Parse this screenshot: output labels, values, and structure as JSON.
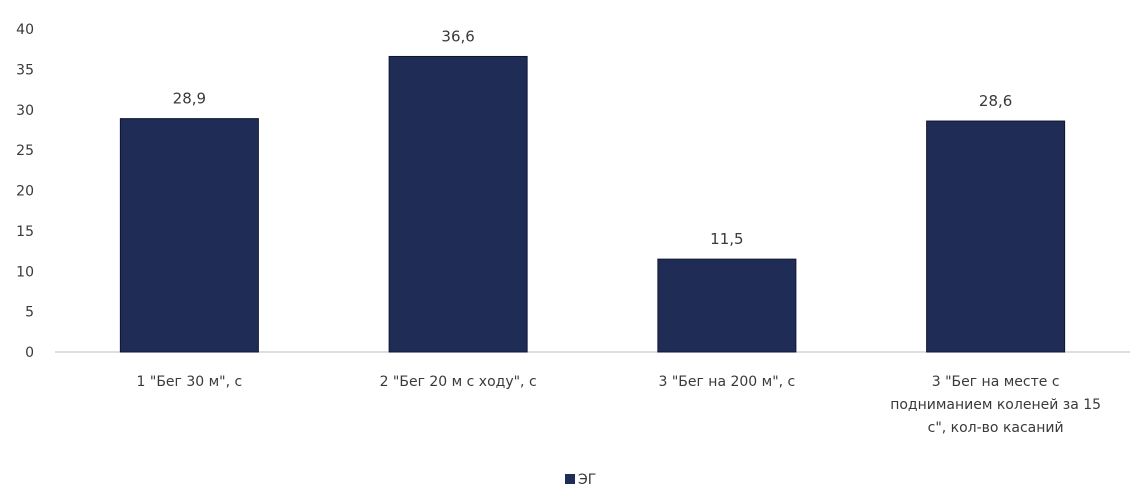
{
  "chart_data": {
    "type": "bar",
    "categories": [
      [
        "1 \"Бег 30 м\", с"
      ],
      [
        "2 \"Бег 20 м с ходу\", с"
      ],
      [
        "3 \"Бег на 200 м\", с"
      ],
      [
        "3 \"Бег на месте с",
        "подниманием коленей за 15",
        "с\", кол-во касаний"
      ]
    ],
    "series": [
      {
        "name": "ЭГ",
        "values": [
          28.9,
          36.6,
          11.5,
          28.6
        ],
        "value_labels": [
          "28,9",
          "36,6",
          "11,5",
          "28,6"
        ],
        "color": "#1f2c56"
      }
    ],
    "yticks": [
      0,
      5,
      10,
      15,
      20,
      25,
      30,
      35,
      40
    ],
    "ylim": [
      0,
      40
    ],
    "grid": false,
    "legend": "bottom-center",
    "title": "",
    "xlabel": "",
    "ylabel": ""
  }
}
